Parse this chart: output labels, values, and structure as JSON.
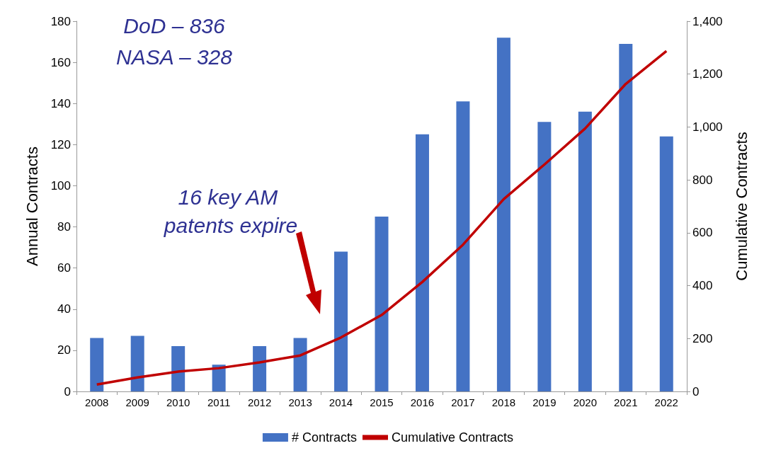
{
  "chart_data": {
    "type": "bar",
    "ylabel": "Annual Contracts",
    "y2label": "Cumulative Contracts",
    "categories": [
      "2008",
      "2009",
      "2010",
      "2011",
      "2012",
      "2013",
      "2014",
      "2015",
      "2016",
      "2017",
      "2018",
      "2019",
      "2020",
      "2021",
      "2022"
    ],
    "series": [
      {
        "name": "# Contracts",
        "color": "#4472c4",
        "values": [
          26,
          27,
          22,
          13,
          22,
          26,
          68,
          85,
          125,
          141,
          172,
          131,
          136,
          169,
          124
        ]
      },
      {
        "name": "Cumulative Contracts",
        "type": "line",
        "axis": "y2",
        "color": "#c00000",
        "values": [
          26,
          53,
          75,
          88,
          110,
          136,
          204,
          289,
          414,
          555,
          727,
          858,
          994,
          1163,
          1287
        ]
      }
    ],
    "ylim": [
      0,
      180
    ],
    "yticks": [
      0,
      20,
      40,
      60,
      80,
      100,
      120,
      140,
      160,
      180
    ],
    "y2lim": [
      0,
      1400
    ],
    "y2ticks": [
      {
        "value": 0,
        "label": "0"
      },
      {
        "value": 200,
        "label": "200"
      },
      {
        "value": 400,
        "label": "400"
      },
      {
        "value": 600,
        "label": "600"
      },
      {
        "value": 800,
        "label": "800"
      },
      {
        "value": 1000,
        "label": "1,000"
      },
      {
        "value": 1200,
        "label": "1,200"
      },
      {
        "value": 1400,
        "label": "1,400"
      }
    ],
    "annotations": [
      "DoD – 836",
      "NASA – 328",
      "16 key AM patents expire"
    ],
    "legend": "bottom",
    "grid": false,
    "marker": "none"
  }
}
